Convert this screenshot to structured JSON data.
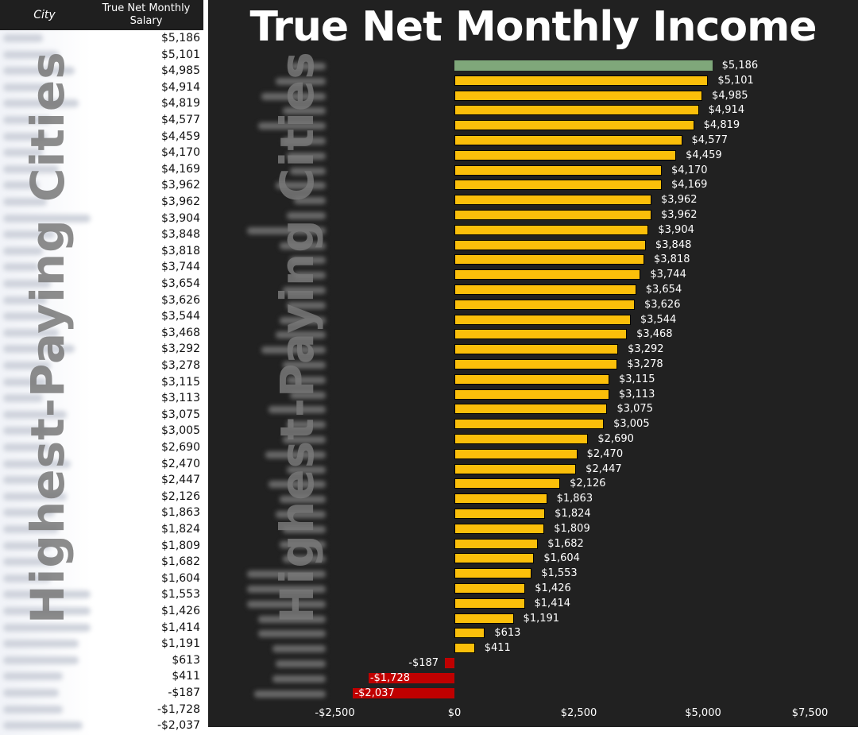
{
  "table": {
    "headers": {
      "city": "City",
      "salary": "True Net Monthly Salary"
    },
    "rows": [
      {
        "city_blurred": true,
        "value": "$5,186"
      },
      {
        "city_blurred": true,
        "value": "$5,101"
      },
      {
        "city_blurred": true,
        "value": "$4,985"
      },
      {
        "city_blurred": true,
        "value": "$4,914"
      },
      {
        "city_blurred": true,
        "value": "$4,819"
      },
      {
        "city_blurred": true,
        "value": "$4,577"
      },
      {
        "city_blurred": true,
        "value": "$4,459"
      },
      {
        "city_blurred": true,
        "value": "$4,170"
      },
      {
        "city_blurred": true,
        "value": "$4,169"
      },
      {
        "city_blurred": true,
        "value": "$3,962"
      },
      {
        "city_blurred": true,
        "value": "$3,962"
      },
      {
        "city_blurred": true,
        "value": "$3,904"
      },
      {
        "city_blurred": true,
        "value": "$3,848"
      },
      {
        "city_blurred": true,
        "value": "$3,818"
      },
      {
        "city_blurred": true,
        "value": "$3,744"
      },
      {
        "city_blurred": true,
        "value": "$3,654"
      },
      {
        "city_blurred": true,
        "value": "$3,626"
      },
      {
        "city_blurred": true,
        "value": "$3,544"
      },
      {
        "city_blurred": true,
        "value": "$3,468"
      },
      {
        "city_blurred": true,
        "value": "$3,292"
      },
      {
        "city_blurred": true,
        "value": "$3,278"
      },
      {
        "city_blurred": true,
        "value": "$3,115"
      },
      {
        "city_blurred": true,
        "value": "$3,113"
      },
      {
        "city_blurred": true,
        "value": "$3,075"
      },
      {
        "city_blurred": true,
        "value": "$3,005"
      },
      {
        "city_blurred": true,
        "value": "$2,690"
      },
      {
        "city_blurred": true,
        "value": "$2,470"
      },
      {
        "city_blurred": true,
        "value": "$2,447"
      },
      {
        "city_blurred": true,
        "value": "$2,126"
      },
      {
        "city_blurred": true,
        "value": "$1,863"
      },
      {
        "city_blurred": true,
        "value": "$1,824"
      },
      {
        "city_blurred": true,
        "value": "$1,809"
      },
      {
        "city_blurred": true,
        "value": "$1,682"
      },
      {
        "city_blurred": true,
        "value": "$1,604"
      },
      {
        "city_blurred": true,
        "value": "$1,553"
      },
      {
        "city_blurred": true,
        "value": "$1,426"
      },
      {
        "city_blurred": true,
        "value": "$1,414"
      },
      {
        "city_blurred": true,
        "value": "$1,191"
      },
      {
        "city_blurred": true,
        "value": "$613"
      },
      {
        "city_blurred": true,
        "value": "$411"
      },
      {
        "city_blurred": true,
        "value": "-$187"
      },
      {
        "city_blurred": true,
        "value": "-$1,728"
      },
      {
        "city_blurred": true,
        "value": "-$2,037"
      }
    ]
  },
  "watermark": {
    "text": "Highest-Paying Cities"
  },
  "colors": {
    "top": "#7fa77a",
    "positive": "#fbbf0a",
    "negative": "#c00000",
    "background": "#212121"
  },
  "chart_data": {
    "type": "bar",
    "orientation": "horizontal",
    "title": "True Net Monthly Income",
    "xlabel": "",
    "ylabel": "",
    "xlim": [
      -2500,
      7500
    ],
    "xticks": [
      -2500,
      0,
      2500,
      5000,
      7500
    ],
    "xtick_labels": [
      "-$2,500",
      "$0",
      "$2,500",
      "$5,000",
      "$7,500"
    ],
    "grid": false,
    "legend": null,
    "categories_note": "City names blurred in source",
    "values": [
      5186,
      5101,
      4985,
      4914,
      4819,
      4577,
      4459,
      4170,
      4169,
      3962,
      3962,
      3904,
      3848,
      3818,
      3744,
      3654,
      3626,
      3544,
      3468,
      3292,
      3278,
      3115,
      3113,
      3075,
      3005,
      2690,
      2470,
      2447,
      2126,
      1863,
      1824,
      1809,
      1682,
      1604,
      1553,
      1426,
      1414,
      1191,
      613,
      411,
      -187,
      -1728,
      -2037
    ],
    "value_labels": [
      "$5,186",
      "$5,101",
      "$4,985",
      "$4,914",
      "$4,819",
      "$4,577",
      "$4,459",
      "$4,170",
      "$4,169",
      "$3,962",
      "$3,962",
      "$3,904",
      "$3,848",
      "$3,818",
      "$3,744",
      "$3,654",
      "$3,626",
      "$3,544",
      "$3,468",
      "$3,292",
      "$3,278",
      "$3,115",
      "$3,113",
      "$3,075",
      "$3,005",
      "$2,690",
      "$2,470",
      "$2,447",
      "$2,126",
      "$1,863",
      "$1,824",
      "$1,809",
      "$1,682",
      "$1,604",
      "$1,553",
      "$1,426",
      "$1,414",
      "$1,191",
      "$613",
      "$411",
      "-$187",
      "-$1,728",
      "-$2,037"
    ]
  }
}
